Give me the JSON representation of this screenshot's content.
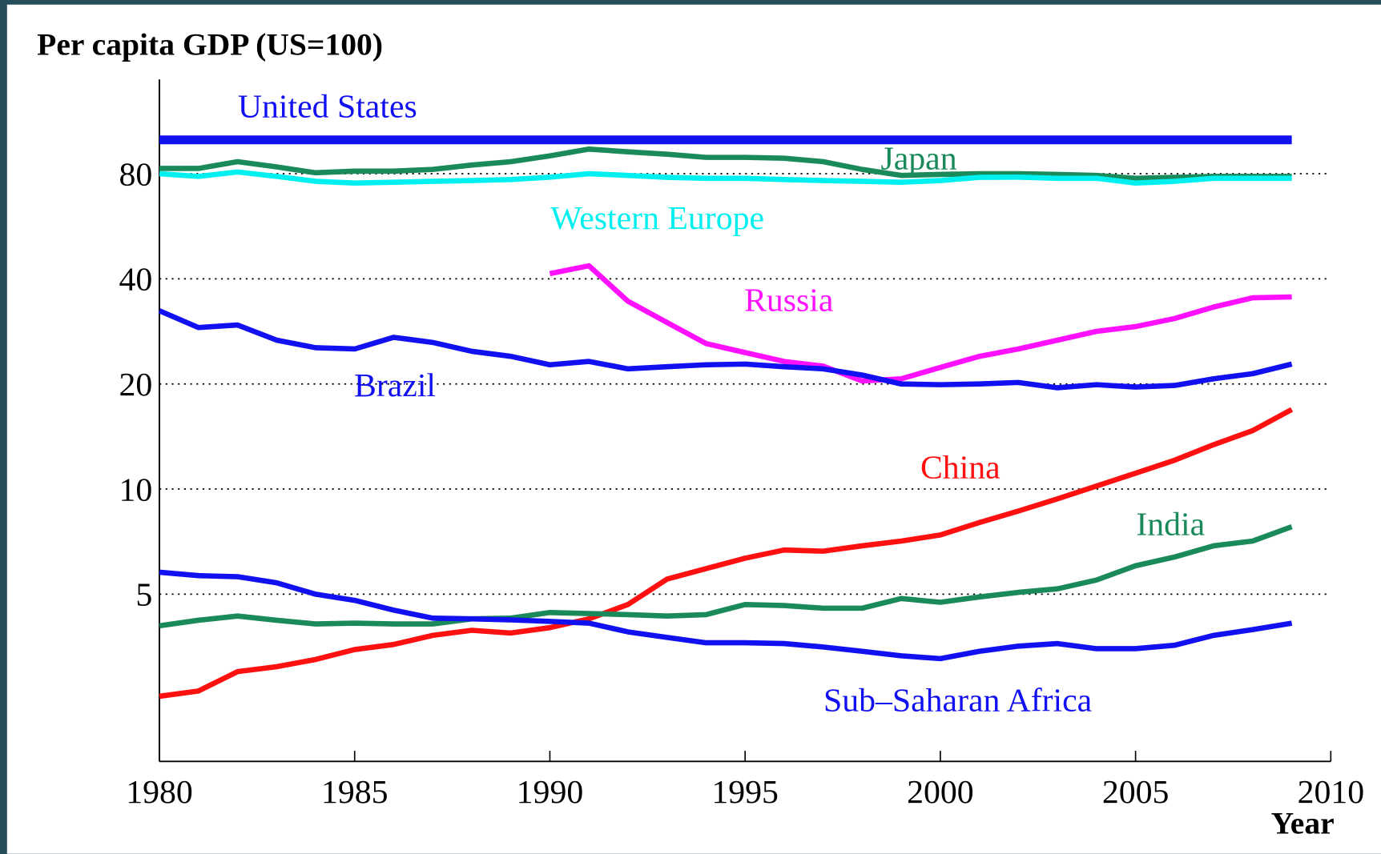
{
  "chart_data": {
    "type": "line",
    "title": "Per capita GDP (US=100)",
    "x_label": "Year",
    "log_y": true,
    "grid": true,
    "x": [
      1980,
      1981,
      1982,
      1983,
      1984,
      1985,
      1986,
      1987,
      1988,
      1989,
      1990,
      1991,
      1992,
      1993,
      1994,
      1995,
      1996,
      1997,
      1998,
      1999,
      2000,
      2001,
      2002,
      2003,
      2004,
      2005,
      2006,
      2007,
      2008,
      2009
    ],
    "xlim": [
      1980,
      2010
    ],
    "xticks": [
      1980,
      1985,
      1990,
      1995,
      2000,
      2005,
      2010
    ],
    "ylim": [
      1.66,
      149
    ],
    "yticks": [
      5,
      10,
      20,
      40,
      80
    ],
    "series": [
      {
        "name": "United States",
        "color": "#1010f0",
        "values": [
          100,
          100,
          100,
          100,
          100,
          100,
          100,
          100,
          100,
          100,
          100,
          100,
          100,
          100,
          100,
          100,
          100,
          100,
          100,
          100,
          100,
          100,
          100,
          100,
          100,
          100,
          100,
          100,
          100,
          100
        ]
      },
      {
        "name": "Japan",
        "color": "#1a8a5a",
        "values": [
          82.8,
          82.8,
          86.6,
          83.7,
          80.5,
          81.4,
          81.4,
          82.3,
          84.7,
          86.6,
          90.0,
          94.1,
          92.4,
          91.0,
          89.1,
          89.1,
          88.6,
          86.6,
          82.3,
          79.1,
          79.6,
          80,
          80,
          79.6,
          79.1,
          77.6,
          78.1,
          78.6,
          78.6,
          78.6
        ]
      },
      {
        "name": "Western Europe",
        "color": "#00f0f0",
        "values": [
          80,
          78.6,
          80.9,
          78.6,
          76.1,
          75.2,
          75.6,
          76.1,
          76.5,
          77.0,
          78.2,
          80,
          79.1,
          78.1,
          77.6,
          77.6,
          77.0,
          76.5,
          76.1,
          75.6,
          76.5,
          78.1,
          78.2,
          77.6,
          77.6,
          75.2,
          76.1,
          77.6,
          77.6,
          77.6
        ]
      },
      {
        "name": "Russia",
        "color": "#ff10ff",
        "values": [
          null,
          null,
          null,
          null,
          null,
          null,
          null,
          null,
          null,
          null,
          41.4,
          43.6,
          34.5,
          30.0,
          26.1,
          24.6,
          23.2,
          22.5,
          20.4,
          20.7,
          22.3,
          24.0,
          25.2,
          26.7,
          28.3,
          29.2,
          30.8,
          33.2,
          35.3,
          35.5
        ]
      },
      {
        "name": "Brazil",
        "color": "#1010f0",
        "values": [
          32.4,
          29,
          29.5,
          26.7,
          25.4,
          25.2,
          27.2,
          26.3,
          24.8,
          24.0,
          22.7,
          23.2,
          22.1,
          22.4,
          22.7,
          22.8,
          22.4,
          22.1,
          21.2,
          20,
          19.9,
          20,
          20.2,
          19.5,
          19.9,
          19.6,
          19.8,
          20.7,
          21.4,
          22.8
        ]
      },
      {
        "name": "China",
        "color": "#ff1010",
        "values": [
          2.55,
          2.64,
          3.0,
          3.1,
          3.25,
          3.47,
          3.59,
          3.81,
          3.94,
          3.87,
          4.01,
          4.25,
          4.67,
          5.52,
          5.92,
          6.34,
          6.69,
          6.64,
          6.88,
          7.1,
          7.39,
          8.02,
          8.65,
          9.38,
          10.2,
          11.1,
          12.1,
          13.4,
          14.7,
          16.9
        ]
      },
      {
        "name": "India",
        "color": "#1a8a5a",
        "values": [
          4.06,
          4.21,
          4.33,
          4.21,
          4.11,
          4.13,
          4.11,
          4.11,
          4.25,
          4.27,
          4.43,
          4.4,
          4.37,
          4.33,
          4.37,
          4.67,
          4.64,
          4.56,
          4.56,
          4.86,
          4.74,
          4.91,
          5.06,
          5.18,
          5.49,
          6.03,
          6.39,
          6.88,
          7.1,
          7.8
        ]
      },
      {
        "name": "Sub–Saharan Africa",
        "color": "#1010f0",
        "values": [
          5.78,
          5.65,
          5.61,
          5.39,
          5,
          4.8,
          4.5,
          4.27,
          4.25,
          4.22,
          4.18,
          4.13,
          3.9,
          3.76,
          3.63,
          3.63,
          3.61,
          3.53,
          3.43,
          3.33,
          3.27,
          3.43,
          3.55,
          3.61,
          3.49,
          3.49,
          3.57,
          3.81,
          3.96,
          4.13
        ]
      }
    ]
  }
}
